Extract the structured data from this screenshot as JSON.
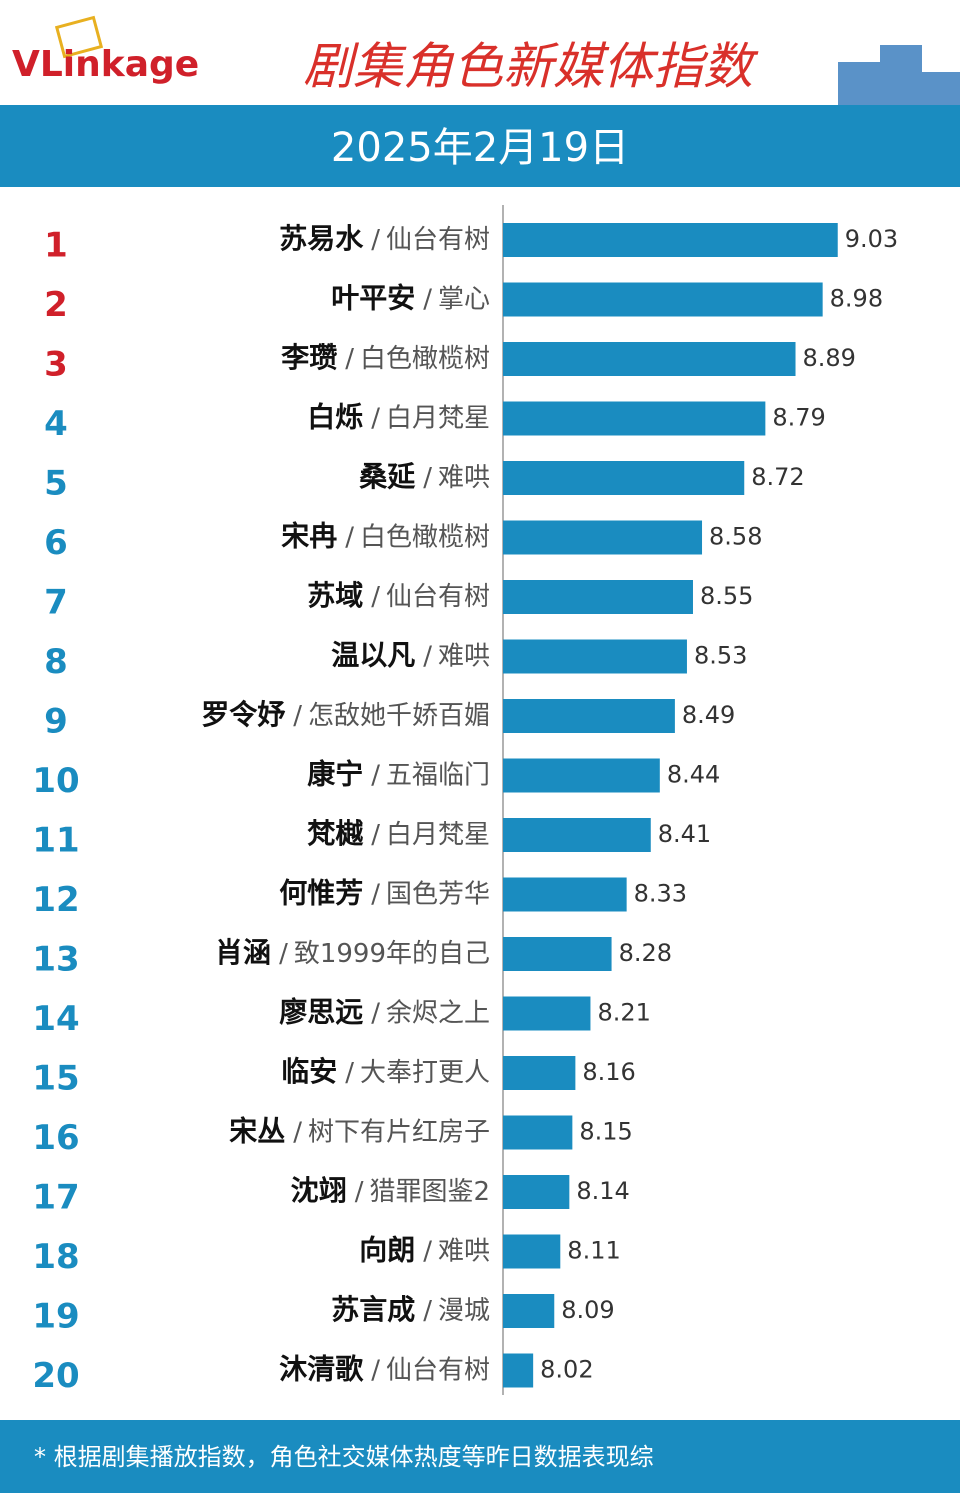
{
  "logo": "VLinkage",
  "chart_data": {
    "type": "bar",
    "title": "剧集角色新媒体指数",
    "subtitle": "2025年2月19日",
    "ranks": [
      1,
      2,
      3,
      4,
      5,
      6,
      7,
      8,
      9,
      10,
      11,
      12,
      13,
      14,
      15,
      16,
      17,
      18,
      19,
      20
    ],
    "rank_colors": [
      "#d0202a",
      "#d0202a",
      "#d0202a",
      "#1a8cc0",
      "#1a8cc0",
      "#1a8cc0",
      "#1a8cc0",
      "#1a8cc0",
      "#1a8cc0",
      "#1a8cc0",
      "#1a8cc0",
      "#1a8cc0",
      "#1a8cc0",
      "#1a8cc0",
      "#1a8cc0",
      "#1a8cc0",
      "#1a8cc0",
      "#1a8cc0",
      "#1a8cc0",
      "#1a8cc0"
    ],
    "categories": [
      "苏易水",
      "叶平安",
      "李瓒",
      "白烁",
      "桑延",
      "宋冉",
      "苏域",
      "温以凡",
      "罗令妤",
      "康宁",
      "梵樾",
      "何惟芳",
      "肖涵",
      "廖思远",
      "临安",
      "宋丛",
      "沈翊",
      "向朗",
      "苏言成",
      "沐清歌"
    ],
    "separator": "/",
    "dramas": [
      "仙台有树",
      "掌心",
      "白色橄榄树",
      "白月梵星",
      "难哄",
      "白色橄榄树",
      "仙台有树",
      "难哄",
      "怎敌她千娇百媚",
      "五福临门",
      "白月梵星",
      "国色芳华",
      "致1999年的自己",
      "余烬之上",
      "大奉打更人",
      "树下有片红房子",
      "猎罪图鉴2",
      "难哄",
      "漫城",
      "仙台有树"
    ],
    "values": [
      9.03,
      8.98,
      8.89,
      8.79,
      8.72,
      8.58,
      8.55,
      8.53,
      8.49,
      8.44,
      8.41,
      8.33,
      8.28,
      8.21,
      8.16,
      8.15,
      8.14,
      8.11,
      8.09,
      8.02
    ],
    "color": "#1a8cc0",
    "xlim": [
      7.92,
      9.2
    ],
    "footnote": "* 根据剧集播放指数，角色社交媒体热度等昨日数据表现综"
  }
}
